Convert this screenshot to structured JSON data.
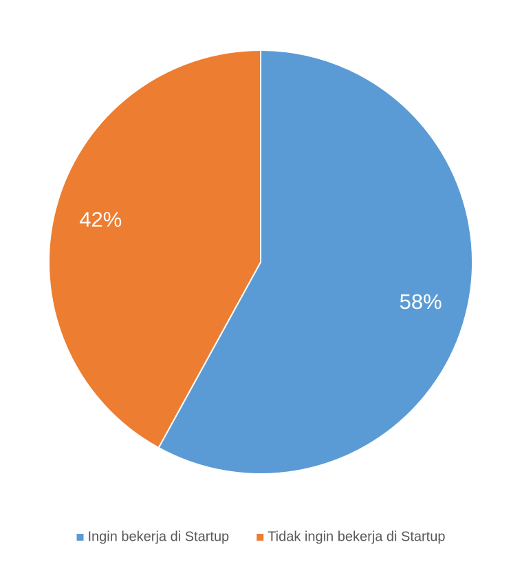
{
  "chart_data": {
    "type": "pie",
    "categories": [
      "Ingin bekerja di Startup",
      "Tidak ingin bekerja di Startup"
    ],
    "values": [
      58,
      42
    ],
    "value_labels": [
      "58%",
      "42%"
    ],
    "colors": [
      "#5b9bd5",
      "#ed7d31"
    ],
    "legend": "bottom"
  }
}
